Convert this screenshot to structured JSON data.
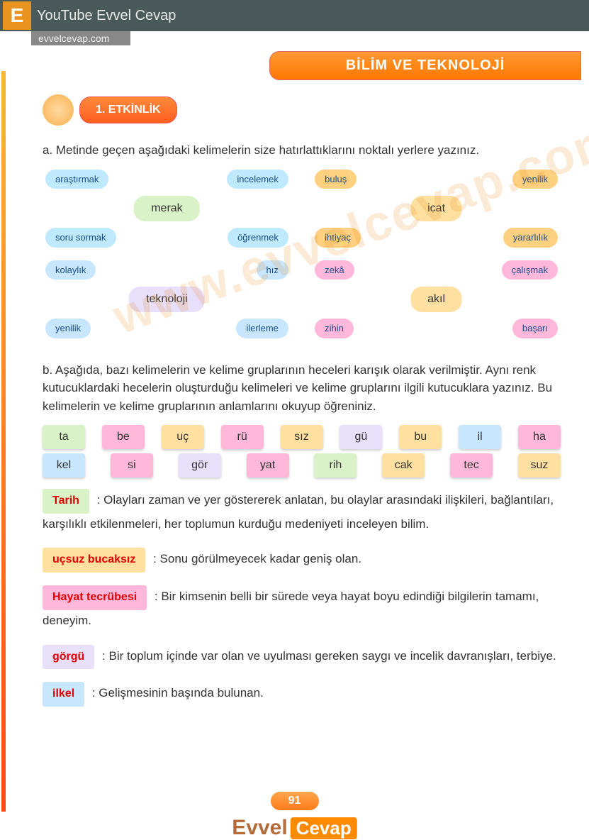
{
  "topbar": {
    "logo": "E",
    "youtube": "YouTube Evvel Cevap",
    "url": "evvelcevap.com"
  },
  "header": {
    "title": "BİLİM VE TEKNOLOJİ"
  },
  "activity": {
    "label": "1. ETKİNLİK"
  },
  "qa": {
    "a_text": "a. Metinde geçen aşağıdaki kelimelerin size hatırlattıklarını noktalı yerlere yazınız.",
    "b_text": "b. Aşağıda, bazı kelimelerin ve kelime gruplarının heceleri karışık olarak verilmiştir. Aynı renk kutucuklardaki hecelerin oluşturduğu kelimeleri ve kelime gruplarını ilgili kutucuklara yazınız. Bu kelimelerin ve kelime gruplarının anlamlarını okuyup öğreniniz."
  },
  "mindmaps": [
    {
      "center": "merak",
      "center_color": "#d9f2c7",
      "leaves": [
        "araştırmak",
        "incelemek",
        "soru sormak",
        "öğrenmek"
      ],
      "leaf_color": "#bfe9ff"
    },
    {
      "center": "icat",
      "center_color": "#ffe0a0",
      "leaves": [
        "buluş",
        "yenilik",
        "ihtiyaç",
        "yararlılık"
      ],
      "leaf_color": "#ffd080"
    },
    {
      "center": "teknoloji",
      "center_color": "#e8dffb",
      "leaves": [
        "kolaylık",
        "hız",
        "yenilik",
        "ilerleme"
      ],
      "leaf_color": "#c8e7ff"
    },
    {
      "center": "akıl",
      "center_color": "#ffe0a0",
      "leaves": [
        "zekâ",
        "çalışmak",
        "zihin",
        "başarı"
      ],
      "leaf_color": "#ffb8d9"
    }
  ],
  "syllables": {
    "row1": [
      {
        "t": "ta",
        "c": "#d9f2c7"
      },
      {
        "t": "be",
        "c": "#ffb8d9"
      },
      {
        "t": "uç",
        "c": "#ffe0a0"
      },
      {
        "t": "rü",
        "c": "#ffb8d9"
      },
      {
        "t": "sız",
        "c": "#ffe0a0"
      },
      {
        "t": "gü",
        "c": "#e8dffb"
      },
      {
        "t": "bu",
        "c": "#ffe0a0"
      },
      {
        "t": "il",
        "c": "#c8e7ff"
      },
      {
        "t": "ha",
        "c": "#ffb8d9"
      }
    ],
    "row2": [
      {
        "t": "kel",
        "c": "#c8e7ff"
      },
      {
        "t": "si",
        "c": "#ffb8d9"
      },
      {
        "t": "gör",
        "c": "#e8dffb"
      },
      {
        "t": "yat",
        "c": "#ffb8d9"
      },
      {
        "t": "rih",
        "c": "#d9f2c7"
      },
      {
        "t": "cak",
        "c": "#ffe0a0"
      },
      {
        "t": "tec",
        "c": "#ffb8d9"
      },
      {
        "t": "suz",
        "c": "#ffe0a0"
      }
    ]
  },
  "definitions": [
    {
      "answer": "Tarih",
      "box_color": "#d9f2c7",
      "text": ": Olayları zaman ve yer göstererek anlatan, bu olaylar arasındaki ilişkileri, bağlantıları, karşılıklı etkilenmeleri, her toplumun kurduğu medeniyeti inceleyen bilim."
    },
    {
      "answer": "uçsuz bucaksız",
      "box_color": "#ffe0a0",
      "text": ": Sonu görülmeyecek kadar geniş olan."
    },
    {
      "answer": "Hayat tecrübesi",
      "box_color": "#ffb8d9",
      "text": ": Bir kimsenin belli bir sürede veya hayat boyu edindiği bilgilerin tamamı, deneyim."
    },
    {
      "answer": "görgü",
      "box_color": "#e8dffb",
      "text": ": Bir toplum içinde var olan ve uyulması gereken saygı ve incelik davranışları, terbiye."
    },
    {
      "answer": "ilkel",
      "box_color": "#c8e7ff",
      "text": ": Gelişmesinin başında bulunan."
    }
  ],
  "page_number": "91",
  "footer": {
    "part1": "Evvel",
    "part2": "Cevap"
  },
  "watermark": "www.evvelcevap.com"
}
